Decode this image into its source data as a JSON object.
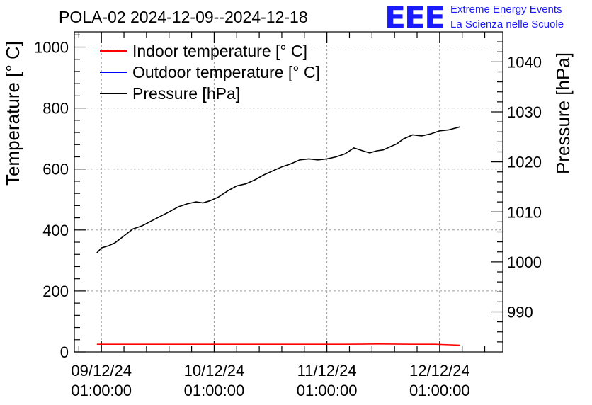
{
  "chart_data": {
    "type": "line",
    "title": "POLA-02 2024-12-09--2024-12-18",
    "ylabel": "Temperature [° C]",
    "y2label": "Pressure [hPa]",
    "ylim": [
      0,
      1050
    ],
    "y2lim": [
      982,
      1046
    ],
    "yticks": [
      0,
      200,
      400,
      600,
      800,
      1000
    ],
    "y2ticks": [
      990,
      1000,
      1010,
      1020,
      1030,
      1040
    ],
    "xlim": [
      0,
      190
    ],
    "xticks": [
      {
        "x": 12,
        "date": "09/12/24",
        "time": "01:00:00"
      },
      {
        "x": 62,
        "date": "10/12/24",
        "time": "01:00:00"
      },
      {
        "x": 112,
        "date": "11/12/24",
        "time": "01:00:00"
      },
      {
        "x": 162,
        "date": "12/12/24",
        "time": "01:00:00"
      }
    ],
    "grid": true,
    "legend_position": "top-left",
    "series": [
      {
        "name": "Indoor temperature [° C]",
        "color": "#ff0000",
        "axis": "left",
        "x": [
          10,
          40,
          80,
          120,
          135,
          150,
          160,
          171
        ],
        "y": [
          25,
          25,
          25,
          25,
          26,
          25,
          25,
          22
        ]
      },
      {
        "name": "Outdoor temperature [° C]",
        "color": "#0000ff",
        "axis": "left",
        "x": [],
        "y": []
      },
      {
        "name": "Pressure [hPa]",
        "color": "#000000",
        "axis": "right",
        "x": [
          10,
          12,
          15,
          18,
          22,
          26,
          30,
          36,
          42,
          46,
          50,
          54,
          57,
          60,
          64,
          68,
          72,
          76,
          80,
          84,
          88,
          92,
          96,
          100,
          104,
          108,
          112,
          116,
          120,
          124,
          128,
          131,
          134,
          137,
          140,
          143,
          146,
          150,
          154,
          158,
          162,
          166,
          171
        ],
        "y": [
          1001.8,
          1002.8,
          1003.2,
          1003.8,
          1005.2,
          1006.6,
          1007.2,
          1008.6,
          1010.0,
          1011.0,
          1011.6,
          1012.0,
          1011.8,
          1012.2,
          1013.0,
          1014.2,
          1015.2,
          1015.6,
          1016.4,
          1017.4,
          1018.2,
          1019.0,
          1019.6,
          1020.4,
          1020.6,
          1020.4,
          1020.6,
          1021.0,
          1021.6,
          1022.8,
          1022.2,
          1021.8,
          1022.2,
          1022.4,
          1023.0,
          1023.6,
          1024.6,
          1025.4,
          1025.2,
          1025.6,
          1026.2,
          1026.4,
          1027.0
        ]
      }
    ]
  },
  "logo": {
    "mark": "EEE",
    "line1": "Extreme Energy Events",
    "line2": "La Scienza nelle Scuole",
    "color": "#1a1aff"
  }
}
